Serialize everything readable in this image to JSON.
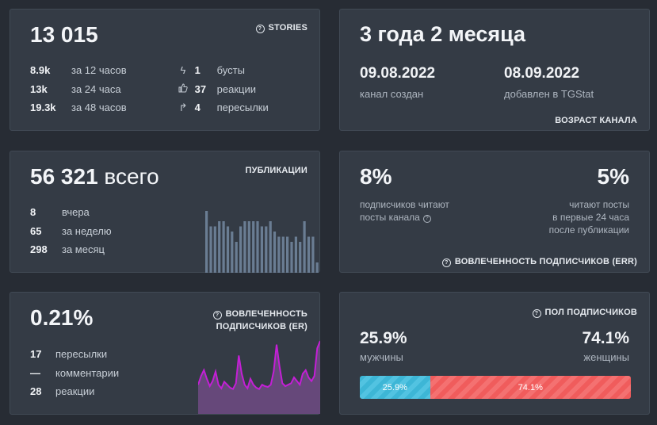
{
  "views": {
    "total": "13 015",
    "tag": "STORIES",
    "stats": [
      {
        "value": "8.9k",
        "label": "за 12 часов"
      },
      {
        "value": "13k",
        "label": "за 24 часа"
      },
      {
        "value": "19.3k",
        "label": "за 48 часов"
      }
    ],
    "actions": [
      {
        "icon": "lightning-icon",
        "value": "1",
        "label": "бусты"
      },
      {
        "icon": "thumbs-up-icon",
        "value": "37",
        "label": "реакции"
      },
      {
        "icon": "share-arrow-icon",
        "value": "4",
        "label": "пересылки"
      }
    ]
  },
  "age": {
    "title": "3 года 2 месяца",
    "created_date": "09.08.2022",
    "created_label": "канал создан",
    "added_date": "08.09.2022",
    "added_label": "добавлен в TGStat",
    "tag": "ВОЗРАСТ КАНАЛА"
  },
  "publications": {
    "total": "56 321",
    "total_suffix": "всего",
    "tag": "ПУБЛИКАЦИИ",
    "stats": [
      {
        "value": "8",
        "label": "вчера"
      },
      {
        "value": "65",
        "label": "за неделю"
      },
      {
        "value": "298",
        "label": "за месяц"
      }
    ],
    "bars": [
      12,
      9,
      9,
      10,
      10,
      9,
      8,
      6,
      9,
      10,
      10,
      10,
      10,
      9,
      9,
      10,
      8,
      7,
      7,
      7,
      6,
      7,
      6,
      10,
      7,
      7,
      2
    ]
  },
  "err": {
    "left_pct": "8%",
    "left_line1": "подписчиков читают",
    "left_line2": "посты канала",
    "right_pct": "5%",
    "right_line1": "читают посты",
    "right_line2": "в первые 24 часа",
    "right_line3": "после публикации",
    "tag": "ВОВЛЕЧЕННОСТЬ ПОДПИСЧИКОВ (ERR)"
  },
  "er": {
    "pct": "0.21%",
    "tag_line1": "ВОВЛЕЧЕННОСТЬ",
    "tag_line2": "ПОДПИСЧИКОВ (ER)",
    "stats": [
      {
        "value": "17",
        "label": "пересылки"
      },
      {
        "value": "—",
        "label": "комментарии"
      },
      {
        "value": "28",
        "label": "реакции"
      }
    ],
    "series": [
      40,
      52,
      60,
      48,
      38,
      45,
      58,
      40,
      35,
      44,
      40,
      36,
      34,
      42,
      80,
      55,
      40,
      35,
      48,
      40,
      36,
      34,
      40,
      38,
      37,
      40,
      58,
      95,
      65,
      42,
      38,
      40,
      42,
      50,
      45,
      40,
      55,
      60,
      50,
      45,
      52,
      90,
      100
    ],
    "color": "#c41fd6"
  },
  "gender": {
    "tag": "ПОЛ ПОДПИСЧИКОВ",
    "male_pct": "25.9%",
    "male_label": "мужчины",
    "female_pct": "74.1%",
    "female_label": "женщины",
    "male_share": 0.259,
    "male_color": "#4cc0df",
    "female_color": "#f26464"
  }
}
